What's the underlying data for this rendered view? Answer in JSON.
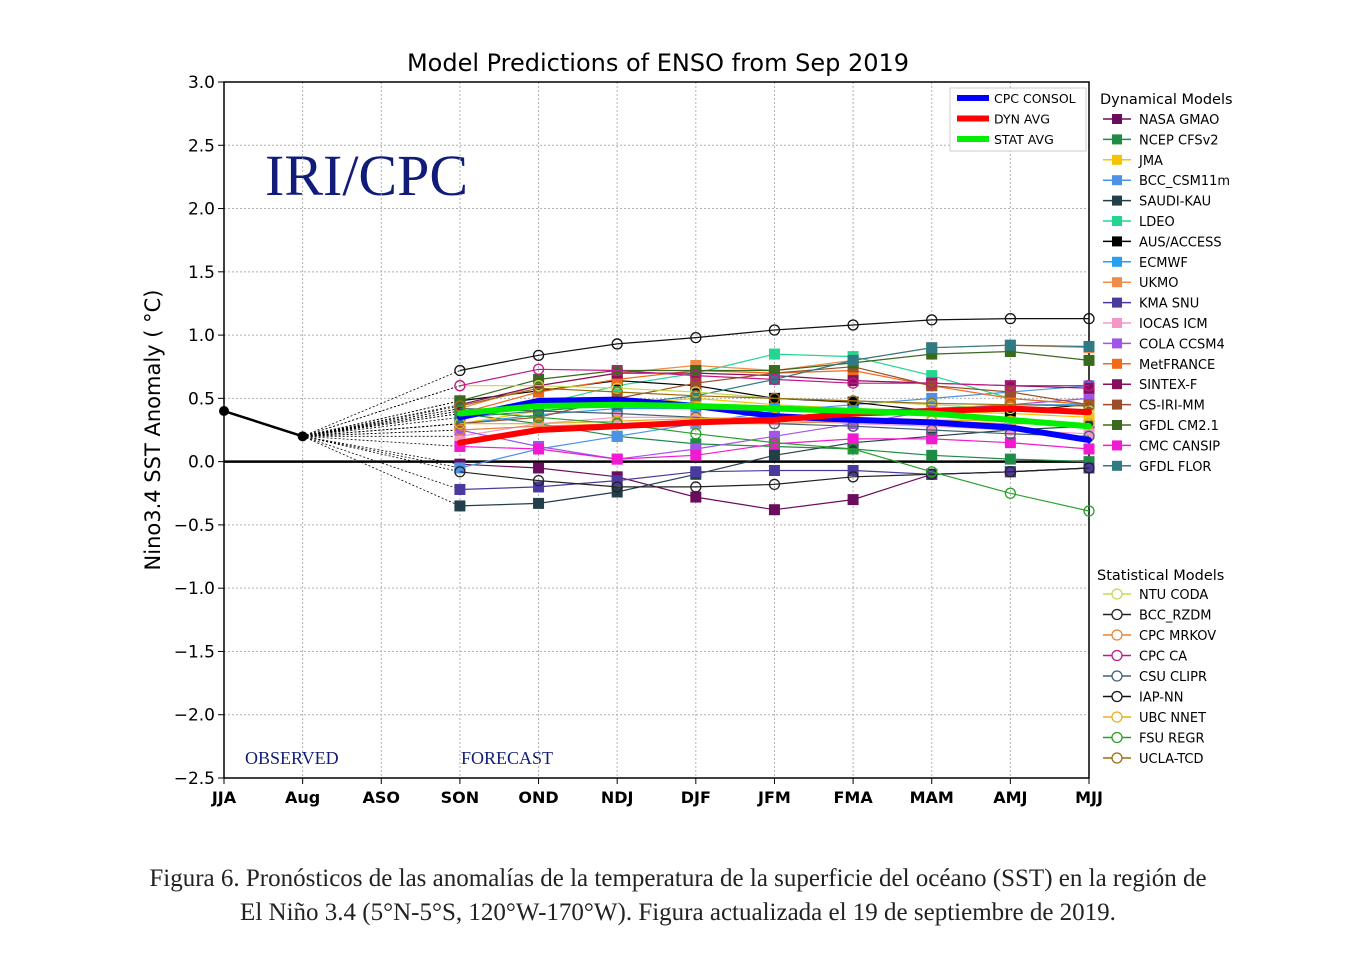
{
  "chart_data": {
    "type": "line",
    "title": "Model Predictions of ENSO from Sep 2019",
    "watermark": "IRI/CPC",
    "ylabel": "Nino3.4 SST Anomaly ( °C)",
    "xlabel": "",
    "categories": [
      "JJA",
      "Aug",
      "ASO",
      "SON",
      "OND",
      "NDJ",
      "DJF",
      "JFM",
      "FMA",
      "MAM",
      "AMJ",
      "MJJ"
    ],
    "ylim": [
      -2.5,
      3.0
    ],
    "yticks": [
      "3.0",
      "2.5",
      "2.0",
      "1.5",
      "1.0",
      "0.5",
      "0.0",
      "−0.5",
      "−1.0",
      "−1.5",
      "−2.0",
      "−2.5"
    ],
    "grid": true,
    "observed_label": "OBSERVED",
    "forecast_label": "FORECAST",
    "observed": {
      "x": [
        "JJA",
        "Aug"
      ],
      "values": [
        0.4,
        0.2
      ],
      "color": "#000000"
    },
    "averages": [
      {
        "name": "CPC CONSOL",
        "color": "#0000ff",
        "values": [
          0.35,
          0.48,
          0.49,
          0.44,
          0.36,
          0.33,
          0.31,
          0.27,
          0.17
        ]
      },
      {
        "name": "DYN AVG",
        "color": "#ff0000",
        "values": [
          0.15,
          0.25,
          0.28,
          0.31,
          0.33,
          0.38,
          0.4,
          0.42,
          0.39
        ]
      },
      {
        "name": "STAT AVG",
        "color": "#00ee00",
        "values": [
          0.38,
          0.44,
          0.45,
          0.44,
          0.42,
          0.4,
          0.38,
          0.33,
          0.28
        ]
      }
    ],
    "legend_dynamical_title": "Dynamical Models",
    "legend_statistical_title": "Statistical Models",
    "dynamical": [
      {
        "name": "NASA GMAO",
        "color": "#6b0d5d",
        "values": [
          -0.02,
          -0.05,
          -0.12,
          -0.28,
          -0.38,
          -0.3,
          -0.1,
          -0.08,
          -0.05
        ]
      },
      {
        "name": "NCEP CFSv2",
        "color": "#1f8c46",
        "values": [
          0.38,
          0.3,
          0.2,
          0.14,
          0.12,
          0.1,
          0.05,
          0.02,
          0.0
        ]
      },
      {
        "name": "JMA",
        "color": "#f5c400",
        "values": [
          0.3,
          0.4,
          0.45,
          0.5,
          0.45,
          0.42,
          0.4,
          0.38,
          0.35
        ]
      },
      {
        "name": "BCC_CSM11m",
        "color": "#4e92e6",
        "values": [
          -0.05,
          0.1,
          0.2,
          0.3,
          0.4,
          0.45,
          0.5,
          0.55,
          0.6
        ]
      },
      {
        "name": "SAUDI-KAU",
        "color": "#23404a",
        "values": [
          -0.35,
          -0.33,
          -0.24,
          -0.1,
          0.05,
          0.15,
          0.2,
          0.25,
          0.28
        ]
      },
      {
        "name": "LDEO",
        "color": "#24d590",
        "values": [
          0.4,
          0.45,
          0.6,
          0.7,
          0.85,
          0.83,
          0.68,
          0.5,
          0.45
        ]
      },
      {
        "name": "AUS/ACCESS",
        "color": "#000000",
        "values": [
          0.48,
          0.56,
          0.64,
          0.6,
          0.5,
          0.47,
          0.4,
          0.4,
          0.45
        ]
      },
      {
        "name": "ECMWF",
        "color": "#27a0f0",
        "values": [
          0.3,
          0.37,
          0.42,
          0.42,
          0.42,
          0.4,
          0.42,
          0.45,
          0.45
        ]
      },
      {
        "name": "UKMO",
        "color": "#f08b4a",
        "values": [
          0.42,
          0.6,
          0.7,
          0.76,
          0.72,
          0.8,
          0.9,
          0.92,
          0.9
        ]
      },
      {
        "name": "KMA SNU",
        "color": "#4b3a9e",
        "values": [
          -0.22,
          -0.2,
          -0.15,
          -0.08,
          -0.07,
          -0.07,
          -0.1,
          -0.08,
          -0.05
        ]
      },
      {
        "name": "IOCAS ICM",
        "color": "#f596c8",
        "values": [
          0.2,
          0.3,
          0.35,
          0.35,
          0.33,
          0.3,
          0.28,
          0.25,
          0.22
        ]
      },
      {
        "name": "COLA CCSM4",
        "color": "#a055e8",
        "values": [
          0.25,
          0.12,
          0.02,
          0.1,
          0.2,
          0.3,
          0.4,
          0.45,
          0.5
        ]
      },
      {
        "name": "MetFRANCE",
        "color": "#ef6a1a",
        "values": [
          0.38,
          0.55,
          0.65,
          0.72,
          0.7,
          0.72,
          0.6,
          0.5,
          0.45
        ]
      },
      {
        "name": "SINTEX-F",
        "color": "#8a0e5e",
        "values": [
          0.45,
          0.6,
          0.7,
          0.7,
          0.68,
          0.64,
          0.62,
          0.6,
          0.58
        ]
      },
      {
        "name": "CS-IRI-MM",
        "color": "#9c4e28",
        "values": [
          0.3,
          0.35,
          0.5,
          0.62,
          0.7,
          0.75,
          0.6,
          0.55,
          0.45
        ]
      },
      {
        "name": "GFDL CM2.1",
        "color": "#3a6a1e",
        "values": [
          0.48,
          0.65,
          0.72,
          0.72,
          0.72,
          0.78,
          0.85,
          0.87,
          0.8
        ]
      },
      {
        "name": "CMC CANSIP",
        "color": "#f01ad0",
        "values": [
          0.12,
          0.1,
          0.02,
          0.05,
          0.14,
          0.18,
          0.18,
          0.15,
          0.1
        ]
      },
      {
        "name": "GFDL FLOR",
        "color": "#2e7a85",
        "values": [
          0.35,
          0.4,
          0.45,
          0.52,
          0.65,
          0.8,
          0.9,
          0.92,
          0.91
        ]
      }
    ],
    "statistical": [
      {
        "name": "NTU CODA",
        "color": "#c8d850",
        "values": [
          0.6,
          0.6,
          0.58,
          0.55,
          0.5,
          0.48,
          0.45,
          0.42,
          0.4
        ]
      },
      {
        "name": "BCC_RZDM",
        "color": "#222222",
        "values": [
          -0.08,
          -0.15,
          -0.2,
          -0.2,
          -0.18,
          -0.12,
          -0.1,
          -0.08,
          -0.05
        ]
      },
      {
        "name": "CPC MRKOV",
        "color": "#e8823a",
        "values": [
          0.25,
          0.28,
          0.3,
          0.3,
          0.3,
          0.32,
          0.32,
          0.3,
          0.3
        ]
      },
      {
        "name": "CPC CA",
        "color": "#c01888",
        "values": [
          0.6,
          0.73,
          0.72,
          0.68,
          0.65,
          0.62,
          0.62,
          0.6,
          0.6
        ]
      },
      {
        "name": "CSU CLIPR",
        "color": "#446070",
        "values": [
          0.42,
          0.4,
          0.38,
          0.35,
          0.3,
          0.28,
          0.25,
          0.22,
          0.2
        ]
      },
      {
        "name": "IAP-NN",
        "color": "#111111",
        "values": [
          0.72,
          0.84,
          0.93,
          0.98,
          1.04,
          1.08,
          1.12,
          1.13,
          1.13
        ]
      },
      {
        "name": "UBC NNET",
        "color": "#e8b020",
        "values": [
          0.3,
          0.3,
          0.32,
          0.34,
          0.35,
          0.35,
          0.33,
          0.32,
          0.3
        ]
      },
      {
        "name": "FSU REGR",
        "color": "#28a028",
        "values": [
          0.4,
          0.35,
          0.3,
          0.22,
          0.15,
          0.1,
          -0.08,
          -0.25,
          -0.39
        ]
      },
      {
        "name": "UCLA-TCD",
        "color": "#9a6e10",
        "values": [
          0.44,
          0.58,
          0.55,
          0.52,
          0.5,
          0.48,
          0.46,
          0.45,
          0.44
        ]
      }
    ]
  },
  "caption": {
    "line1": "Figura 6. Pronósticos de las anomalías de la temperatura de la superficie del océano (SST) en la región de",
    "line2": "El Niño 3.4 (5°N-5°S, 120°W-170°W). Figura actualizada el 19 de septiembre de 2019."
  }
}
